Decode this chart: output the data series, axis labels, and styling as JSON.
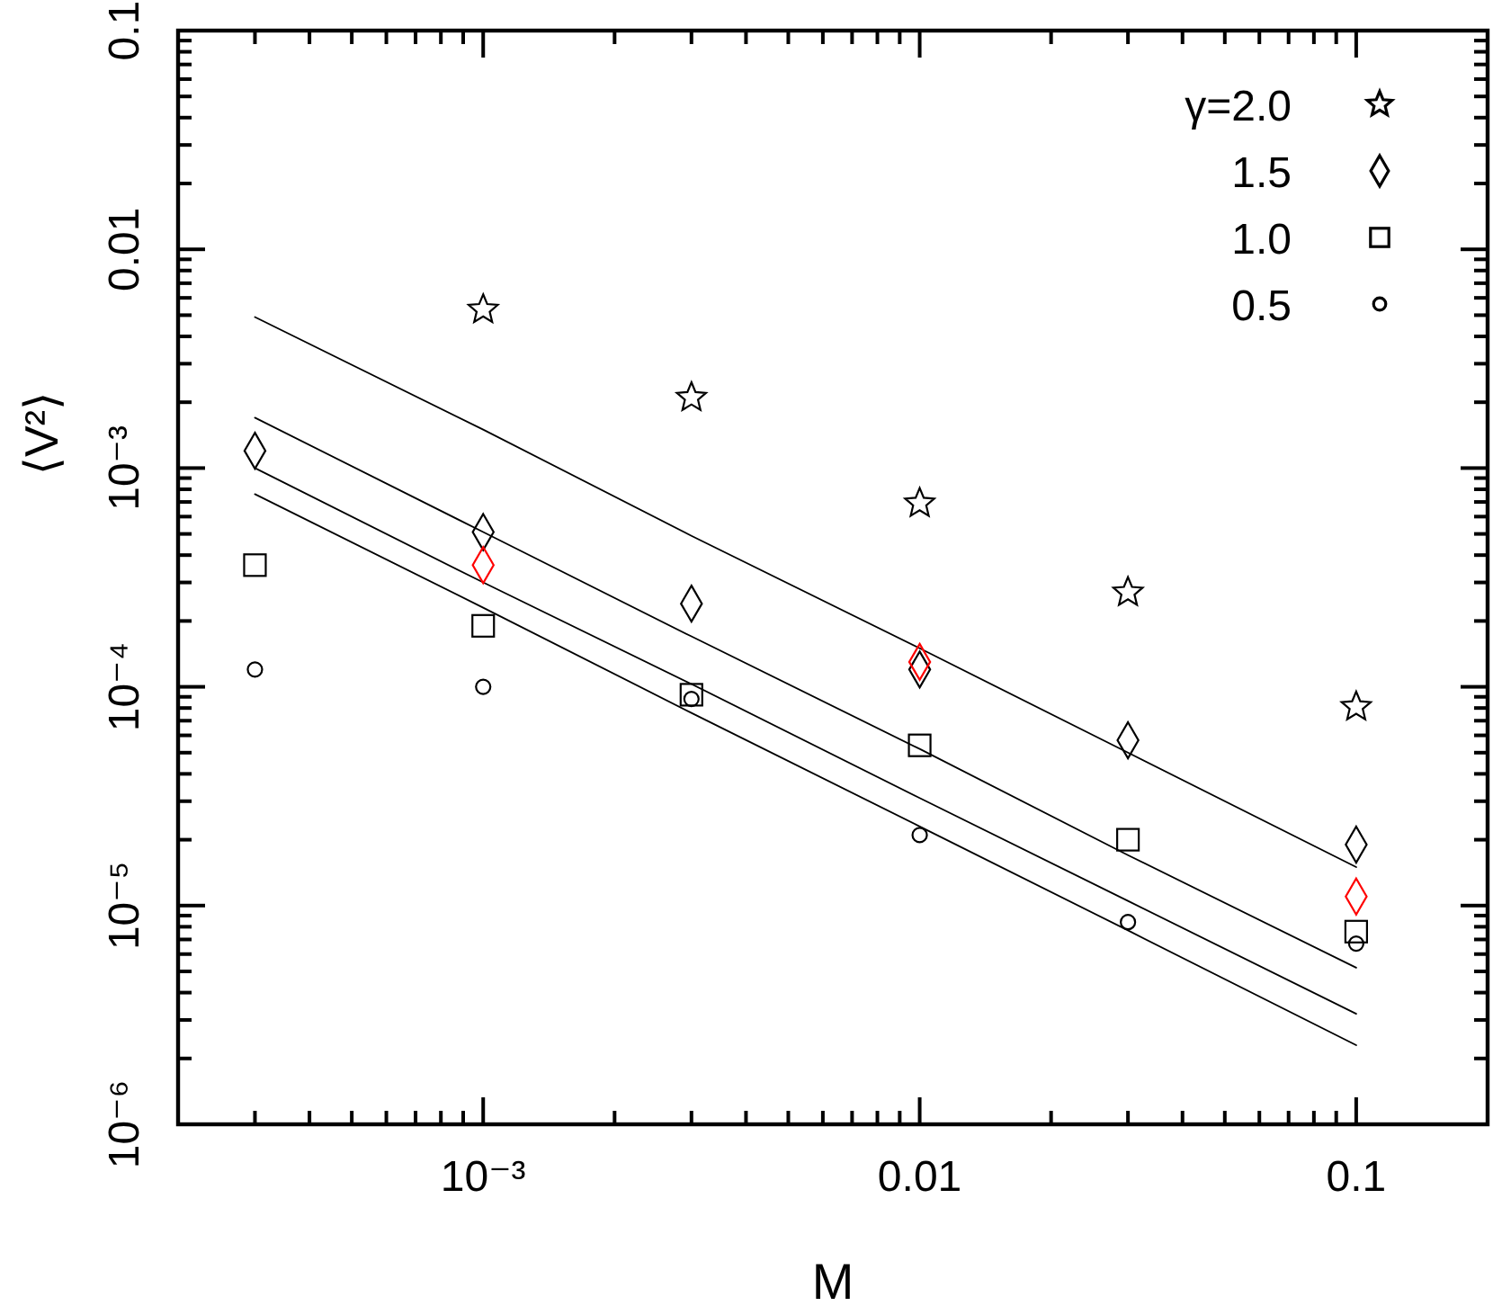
{
  "chart_data": {
    "type": "scatter",
    "xlabel": "M",
    "ylabel": "⟨V²⟩",
    "log": "xy",
    "grid": false,
    "legend": "top right",
    "xlim": [
      0.0002,
      0.2
    ],
    "ylim": [
      1e-06,
      0.1
    ],
    "xticks": [
      {
        "value": 0.0003,
        "label": null
      },
      {
        "value": 0.0004,
        "label": null
      },
      {
        "value": 0.0005,
        "label": null
      },
      {
        "value": 0.0006,
        "label": null
      },
      {
        "value": 0.0007,
        "label": null
      },
      {
        "value": 0.0008,
        "label": null
      },
      {
        "value": 0.0009,
        "label": null
      },
      {
        "value": 0.001,
        "label": "10⁻³"
      },
      {
        "value": 0.002,
        "label": null
      },
      {
        "value": 0.003,
        "label": null
      },
      {
        "value": 0.004,
        "label": null
      },
      {
        "value": 0.005,
        "label": null
      },
      {
        "value": 0.006,
        "label": null
      },
      {
        "value": 0.007,
        "label": null
      },
      {
        "value": 0.008,
        "label": null
      },
      {
        "value": 0.009,
        "label": null
      },
      0.01,
      {
        "value": 0.02,
        "label": null
      },
      {
        "value": 0.03,
        "label": null
      },
      {
        "value": 0.04,
        "label": null
      },
      {
        "value": 0.05,
        "label": null
      },
      {
        "value": 0.06,
        "label": null
      },
      {
        "value": 0.07,
        "label": null
      },
      {
        "value": 0.08,
        "label": null
      },
      {
        "value": 0.09,
        "label": null
      },
      0.1
    ],
    "yticks": [
      {
        "value": 1e-06,
        "label": "10⁻⁶"
      },
      {
        "value": 2e-06,
        "label": null
      },
      {
        "value": 3e-06,
        "label": null
      },
      {
        "value": 4e-06,
        "label": null
      },
      {
        "value": 5e-06,
        "label": null
      },
      {
        "value": 6e-06,
        "label": null
      },
      {
        "value": 7e-06,
        "label": null
      },
      {
        "value": 8e-06,
        "label": null
      },
      {
        "value": 9e-06,
        "label": null
      },
      {
        "value": 1e-05,
        "label": "10⁻⁵"
      },
      {
        "value": 2e-05,
        "label": null
      },
      {
        "value": 3e-05,
        "label": null
      },
      {
        "value": 4e-05,
        "label": null
      },
      {
        "value": 5e-05,
        "label": null
      },
      {
        "value": 6e-05,
        "label": null
      },
      {
        "value": 7e-05,
        "label": null
      },
      {
        "value": 8e-05,
        "label": null
      },
      {
        "value": 9e-05,
        "label": null
      },
      {
        "value": 0.0001,
        "label": "10⁻⁴"
      },
      {
        "value": 0.0002,
        "label": null
      },
      {
        "value": 0.0003,
        "label": null
      },
      {
        "value": 0.0004,
        "label": null
      },
      {
        "value": 0.0005,
        "label": null
      },
      {
        "value": 0.0006,
        "label": null
      },
      {
        "value": 0.0007,
        "label": null
      },
      {
        "value": 0.0008,
        "label": null
      },
      {
        "value": 0.0009,
        "label": null
      },
      {
        "value": 0.001,
        "label": "10⁻³"
      },
      {
        "value": 0.002,
        "label": null
      },
      {
        "value": 0.003,
        "label": null
      },
      {
        "value": 0.004,
        "label": null
      },
      {
        "value": 0.005,
        "label": null
      },
      {
        "value": 0.006,
        "label": null
      },
      {
        "value": 0.007,
        "label": null
      },
      {
        "value": 0.008,
        "label": null
      },
      {
        "value": 0.009,
        "label": null
      },
      0.01,
      {
        "value": 0.02,
        "label": null
      },
      {
        "value": 0.03,
        "label": null
      },
      {
        "value": 0.04,
        "label": null
      },
      {
        "value": 0.05,
        "label": null
      },
      {
        "value": 0.06,
        "label": null
      },
      {
        "value": 0.07,
        "label": null
      },
      {
        "value": 0.08,
        "label": null
      },
      {
        "value": 0.09,
        "label": null
      },
      0.1
    ],
    "x": [
      0.0003,
      0.001,
      0.003,
      0.01,
      0.03,
      0.1
    ],
    "series": [
      {
        "name": "γ=2.0",
        "marker": "star",
        "color": "#000000",
        "values": [
          null,
          0.0053,
          0.0021,
          0.00069,
          0.00027,
          8.1e-05
        ]
      },
      {
        "name": "1.5",
        "marker": "diamond",
        "color": "#000000",
        "values": [
          0.0012,
          0.00051,
          0.00024,
          0.00012,
          5.7e-05,
          1.9e-05
        ]
      },
      {
        "name": "1.0",
        "marker": "square",
        "color": "#000000",
        "values": [
          0.00036,
          0.00019,
          9.2e-05,
          5.4e-05,
          2e-05,
          7.6e-06
        ]
      },
      {
        "name": "0.5",
        "marker": "circle",
        "color": "#000000",
        "values": [
          0.00012,
          0.0001,
          8.8e-05,
          2.1e-05,
          8.4e-06,
          6.7e-06
        ]
      },
      {
        "marker": "diamond",
        "color": "#ff0000",
        "values": [
          null,
          0.00036,
          null,
          0.00013,
          null,
          1.1e-05
        ]
      },
      {
        "type": "line",
        "line_style": "solid",
        "color": "#000000",
        "values": [
          0.0049,
          0.0015,
          0.00049,
          0.00015,
          5e-05,
          1.5e-05
        ]
      },
      {
        "type": "line",
        "line_style": "solid",
        "color": "#000000",
        "values": [
          0.0017,
          0.00051,
          0.00017,
          5.2e-05,
          1.7e-05,
          5.2e-06
        ]
      },
      {
        "type": "line",
        "line_style": "solid",
        "color": "#000000",
        "values": [
          0.001,
          0.0003,
          0.000103,
          3.1e-05,
          1.05e-05,
          3.2e-06
        ]
      },
      {
        "type": "line",
        "line_style": "solid",
        "color": "#000000",
        "values": [
          0.00076,
          0.00023,
          7.6e-05,
          2.3e-05,
          7.7e-06,
          2.3e-06
        ]
      }
    ]
  }
}
